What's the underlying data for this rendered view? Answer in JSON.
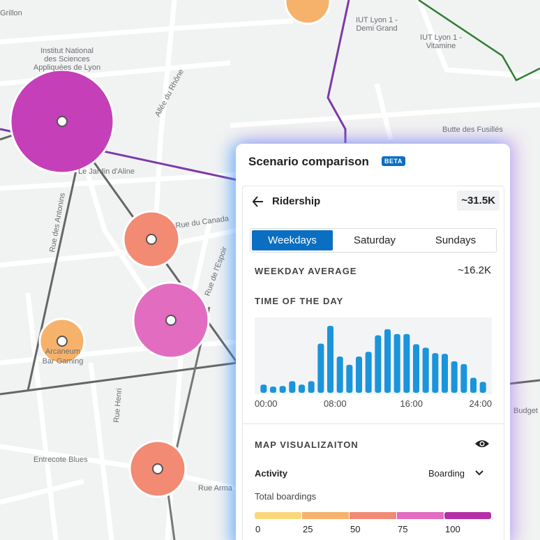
{
  "map": {
    "labels": [
      "Grillon",
      "Institut National",
      "des Sciences",
      "Appliquées de Lyon",
      "IUT Lyon 1 -",
      "Demi Grand",
      "IUT Lyon 1 -",
      "Vitamine",
      "Butte des Fusillés",
      "Le Jardin d'Aline",
      "Rue du Canada",
      "Arcaneum",
      "Bar Gaming",
      "Entrecote Blues",
      "Rue Arma",
      "Allée du Rhône",
      "Rue des Antonins",
      "Rue de l'Espoir",
      "Rue Henri",
      "Budget"
    ]
  },
  "panel": {
    "title": "Scenario comparison",
    "badge": "BETA",
    "metric": "Ridership",
    "total": "~31.5K",
    "tabs": [
      "Weekdays",
      "Saturday",
      "Sundays"
    ],
    "average_label": "WEEKDAY AVERAGE",
    "average_value": "~16.2K",
    "map_label": "MAP VISUALIZAITON",
    "activity_label": "Activity",
    "activity_value": "Boarding",
    "legend_title": "Total boardings",
    "legend": {
      "labels": [
        "0",
        "25",
        "50",
        "75",
        "100"
      ],
      "colors": [
        "#f9d77a",
        "#f6b26b",
        "#f28a74",
        "#e26cc0",
        "#b52fa6"
      ]
    }
  },
  "chart_data": {
    "type": "bar",
    "title": "TIME OF THE DAY",
    "color": "#1a95dc",
    "x": [
      0,
      1,
      2,
      3,
      4,
      5,
      6,
      7,
      8,
      9,
      10,
      11,
      12,
      13,
      14,
      15,
      16,
      17,
      18,
      19,
      20,
      21,
      22,
      23
    ],
    "values": [
      12,
      9,
      10,
      17,
      12,
      17,
      72,
      98,
      53,
      41,
      53,
      60,
      84,
      93,
      86,
      86,
      71,
      66,
      58,
      57,
      46,
      42,
      22,
      16
    ],
    "xlim": [
      0,
      24
    ],
    "ylim": [
      0,
      100
    ],
    "xticks": [
      {
        "value": 0,
        "label": "00:00"
      },
      {
        "value": 8,
        "label": "08:00"
      },
      {
        "value": 16,
        "label": "16:00"
      },
      {
        "value": 24,
        "label": "24:00"
      }
    ]
  }
}
